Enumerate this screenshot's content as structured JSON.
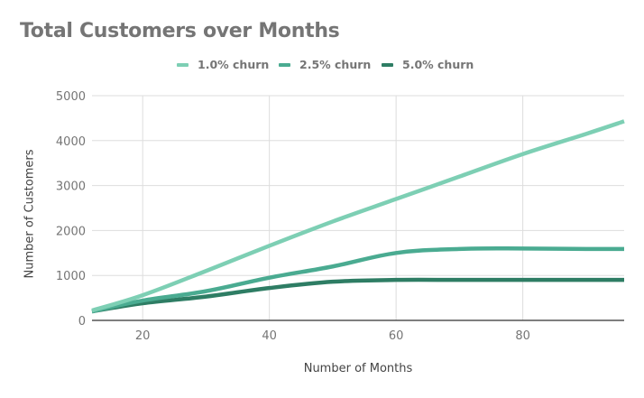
{
  "chart_data": {
    "type": "line",
    "title": "Total Customers over Months",
    "xlabel": "Number of Months",
    "ylabel": "Number of Customers",
    "xlim": [
      12,
      96
    ],
    "ylim": [
      0,
      5000
    ],
    "x_ticks": [
      20,
      40,
      60,
      80
    ],
    "y_ticks": [
      0,
      1000,
      2000,
      3000,
      4000,
      5000
    ],
    "grid": true,
    "legend_position": "top",
    "x": [
      12,
      20,
      30,
      40,
      50,
      60,
      70,
      80,
      90,
      96
    ],
    "series": [
      {
        "name": "1.0% churn",
        "color": "#7dcfb4",
        "values": [
          220,
          560,
          1100,
          1660,
          2200,
          2700,
          3200,
          3700,
          4150,
          4430
        ]
      },
      {
        "name": "2.5% churn",
        "color": "#4aab91",
        "values": [
          200,
          440,
          650,
          950,
          1200,
          1500,
          1590,
          1600,
          1590,
          1590
        ]
      },
      {
        "name": "5.0% churn",
        "color": "#2e7d64",
        "values": [
          200,
          380,
          530,
          720,
          860,
          900,
          900,
          900,
          900,
          900
        ]
      }
    ]
  },
  "legend": [
    {
      "label": "1.0% churn",
      "color": "#7dcfb4"
    },
    {
      "label": "2.5% churn",
      "color": "#4aab91"
    },
    {
      "label": "5.0% churn",
      "color": "#2e7d64"
    }
  ]
}
